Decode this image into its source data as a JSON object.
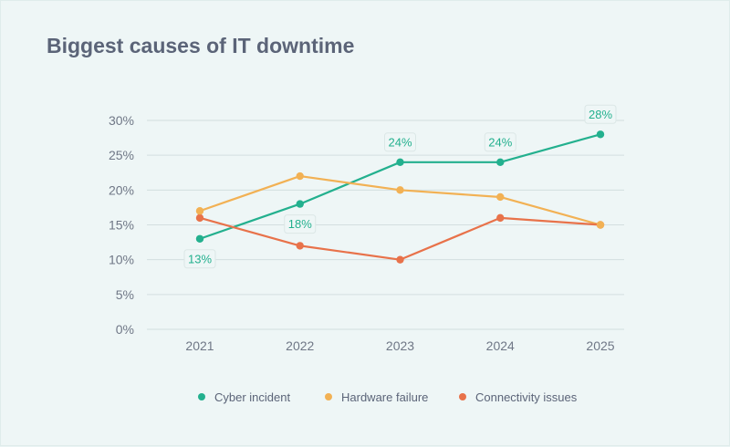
{
  "chart_data": {
    "type": "line",
    "title": "Biggest causes of IT downtime",
    "categories": [
      "2021",
      "2022",
      "2023",
      "2024",
      "2025"
    ],
    "ylim": [
      0,
      30
    ],
    "yticks": [
      0,
      5,
      10,
      15,
      20,
      25,
      30
    ],
    "ytick_labels": [
      "0%",
      "5%",
      "10%",
      "15%",
      "20%",
      "25%",
      "30%"
    ],
    "grid": true,
    "legend_position": "bottom-center",
    "series": [
      {
        "name": "Cyber incident",
        "color": "#23b08e",
        "values": [
          13,
          18,
          24,
          24,
          28
        ],
        "data_labels": [
          "13%",
          "18%",
          "24%",
          "24%",
          "28%"
        ]
      },
      {
        "name": "Hardware failure",
        "color": "#f2b154",
        "values": [
          17,
          22,
          20,
          19,
          15
        ]
      },
      {
        "name": "Connectivity issues",
        "color": "#e8724a",
        "values": [
          16,
          12,
          10,
          16,
          15
        ]
      }
    ]
  }
}
